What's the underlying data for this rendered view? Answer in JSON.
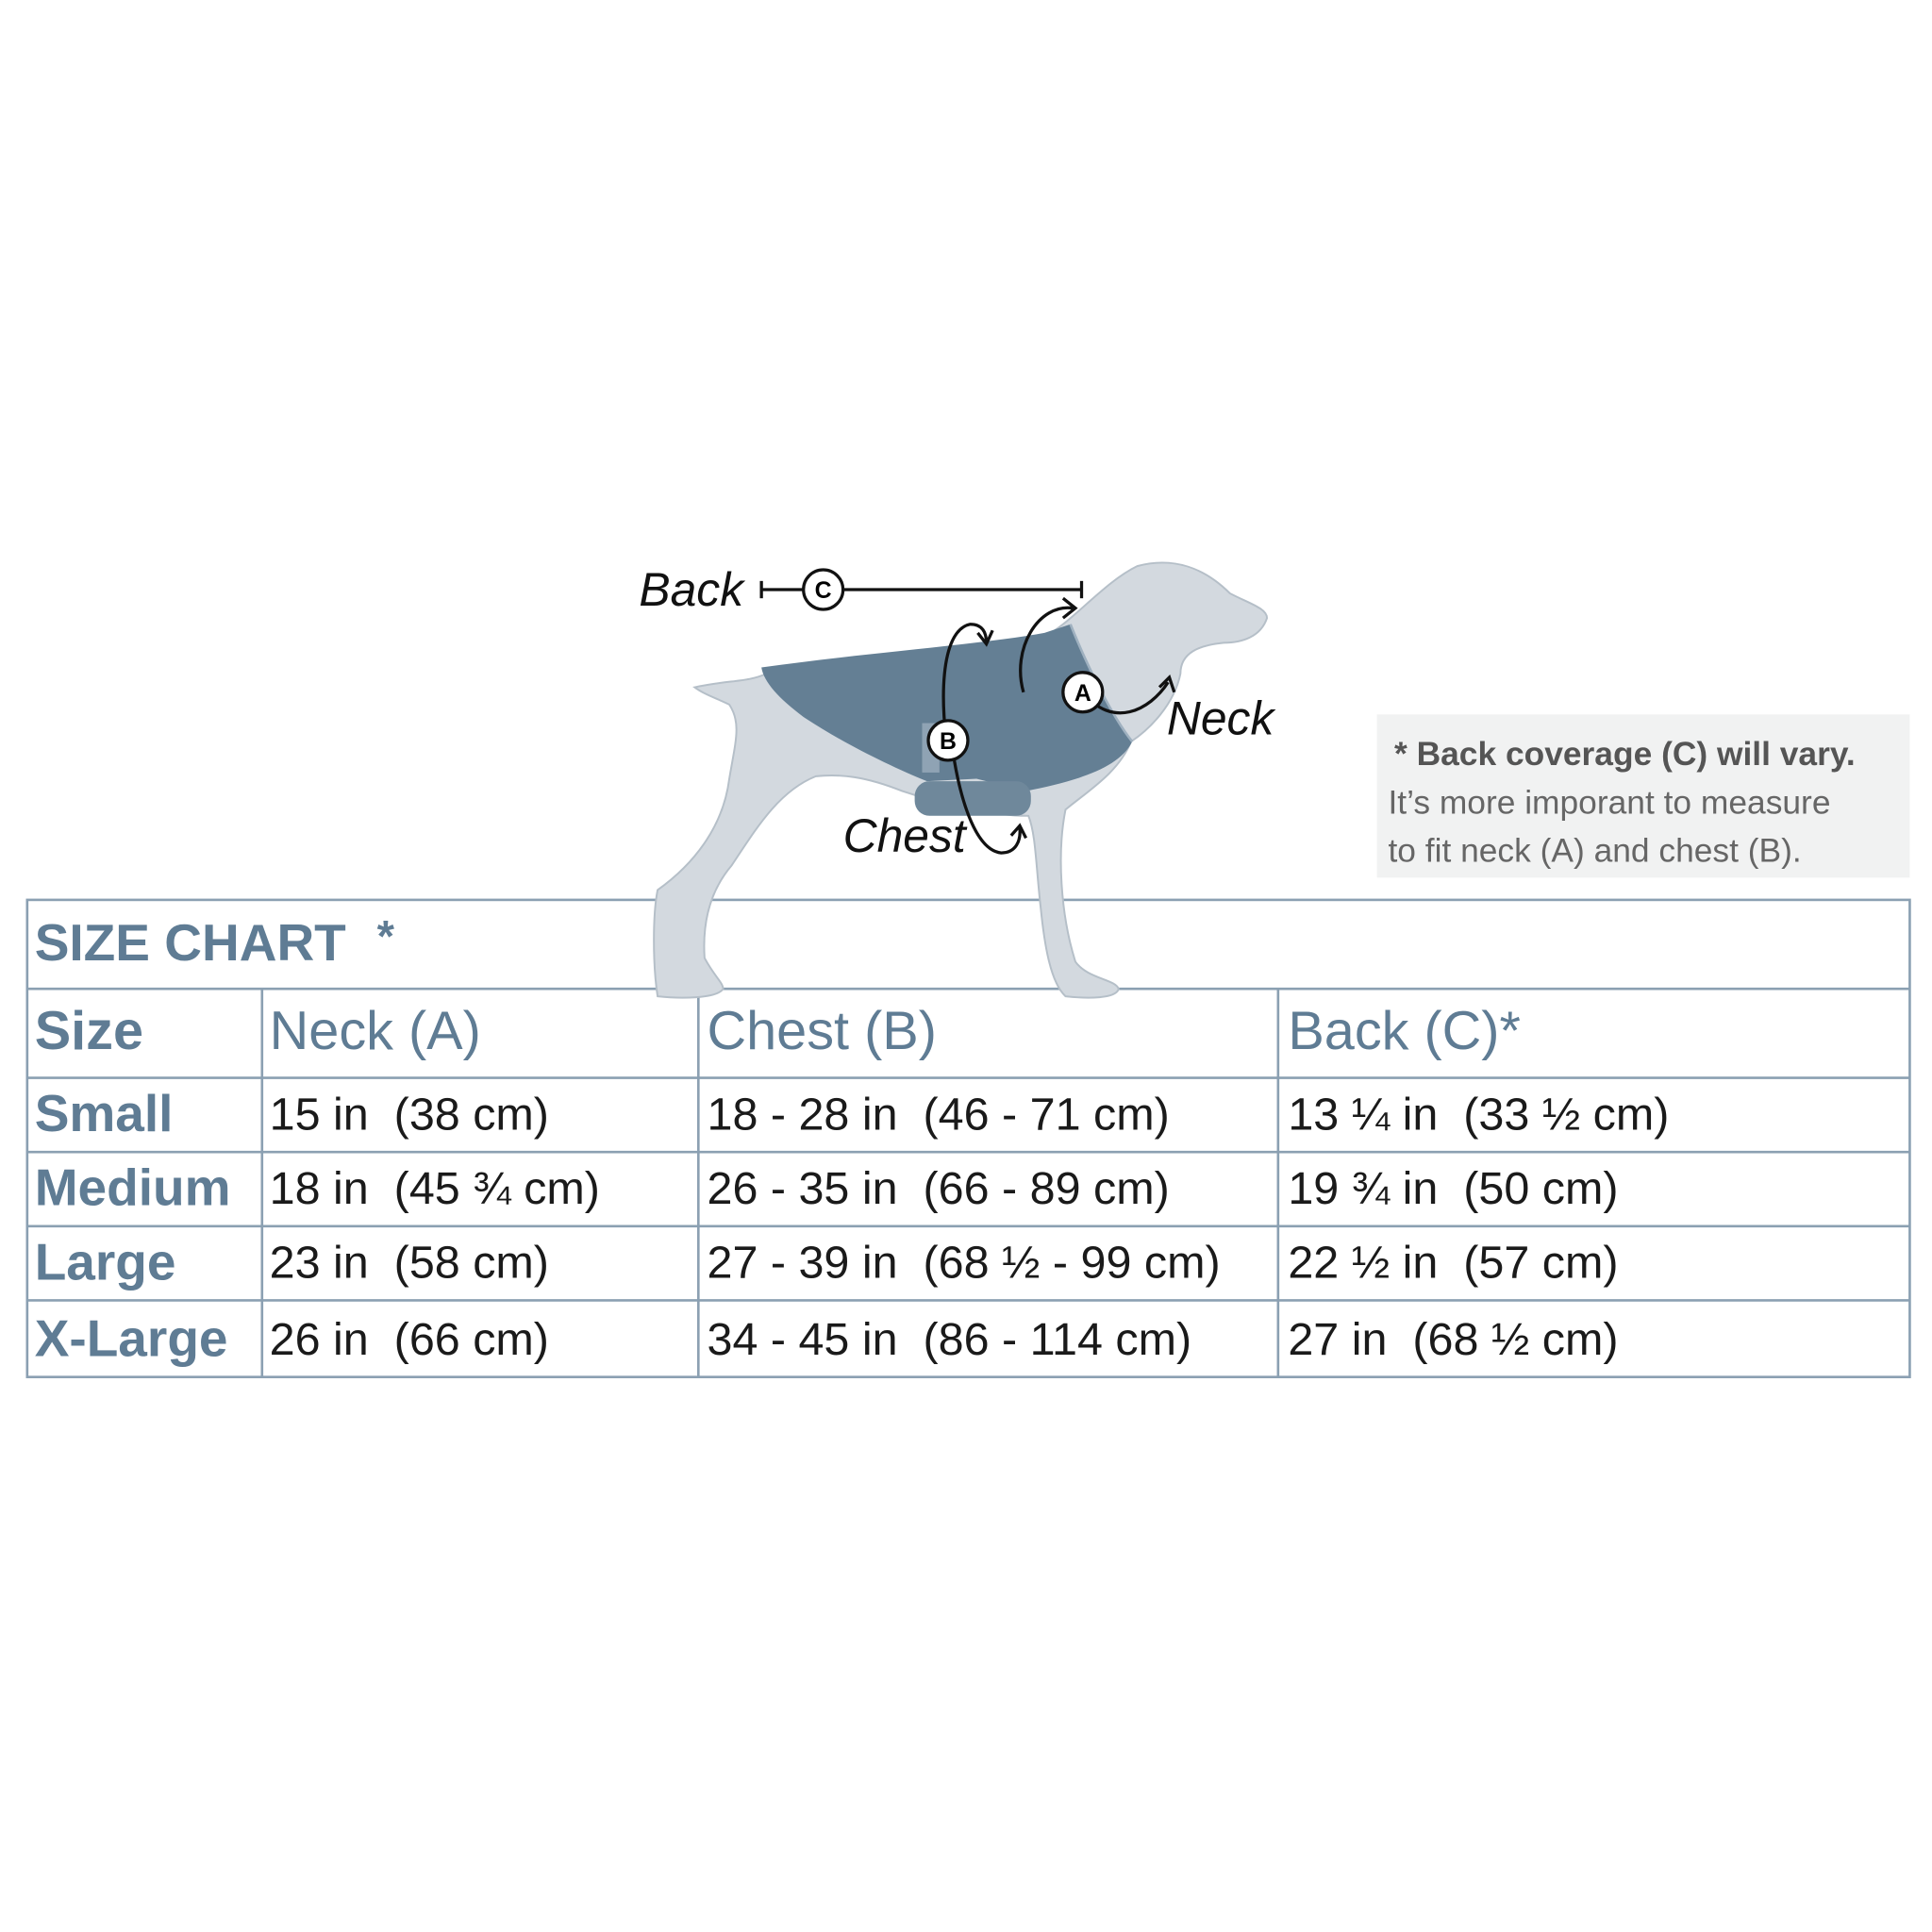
{
  "diagram": {
    "back": "Back",
    "neck": "Neck",
    "chest": "Chest",
    "a": "A",
    "b": "B",
    "c": "C"
  },
  "note": {
    "title": "* Back coverage (C) will vary.",
    "lines": [
      "It’s more imporant to measure",
      "to fit neck (A) and chest (B)."
    ]
  },
  "table": {
    "title": "SIZE CHART",
    "title_mark": "*",
    "header": [
      "Size",
      "Neck (A)",
      "Chest (B)",
      "Back (C)*"
    ],
    "rows": [
      [
        "Small",
        "15 in  (38 cm)",
        "18 - 28 in  (46 - 71 cm)",
        "13 ¼ in  (33 ½ cm)"
      ],
      [
        "Medium",
        "18 in  (45 ¾ cm)",
        "26 - 35 in  (66 - 89 cm)",
        "19 ¾ in  (50 cm)"
      ],
      [
        "Large",
        "23 in  (58 cm)",
        "27 - 39 in  (68 ½ - 99 cm)",
        "22 ½ in  (57 cm)"
      ],
      [
        "X-Large",
        "26 in  (66 cm)",
        "34 - 45 in  (86 - 114 cm)",
        "27 in  (68 ½ cm)"
      ]
    ]
  }
}
